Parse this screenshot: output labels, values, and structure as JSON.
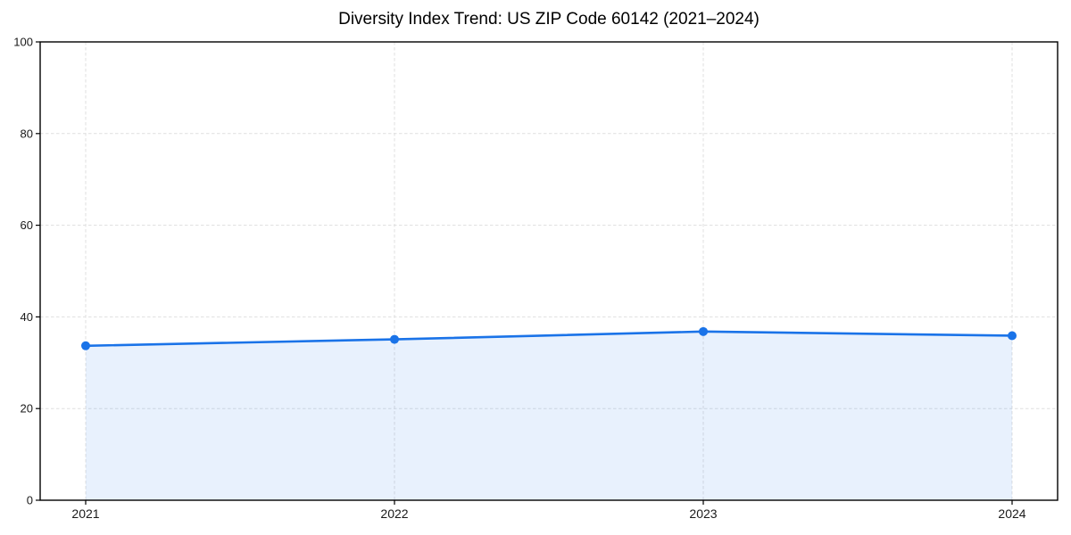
{
  "chart_data": {
    "type": "line",
    "title": "Diversity Index Trend: US ZIP Code 60142 (2021–2024)",
    "x": [
      "2021",
      "2022",
      "2023",
      "2024"
    ],
    "series": [
      {
        "name": "Diversity Index",
        "values": [
          33.7,
          35.1,
          36.8,
          35.9
        ]
      }
    ],
    "xlabel": "",
    "ylabel": "",
    "ylim": [
      0,
      100
    ],
    "yticks": [
      0,
      20,
      40,
      60,
      80,
      100
    ],
    "grid": true,
    "grid_style": "dashed",
    "legend": false,
    "area_fill": true,
    "marker": "circle",
    "colors": {
      "line": "#1a73e8",
      "marker": "#1a73e8",
      "fill": "rgba(26,115,232,0.10)",
      "grid": "#dcdcdc",
      "spine": "#000000",
      "tick_label": "#1a1a1a",
      "title": "#000000",
      "background": "#ffffff"
    }
  }
}
